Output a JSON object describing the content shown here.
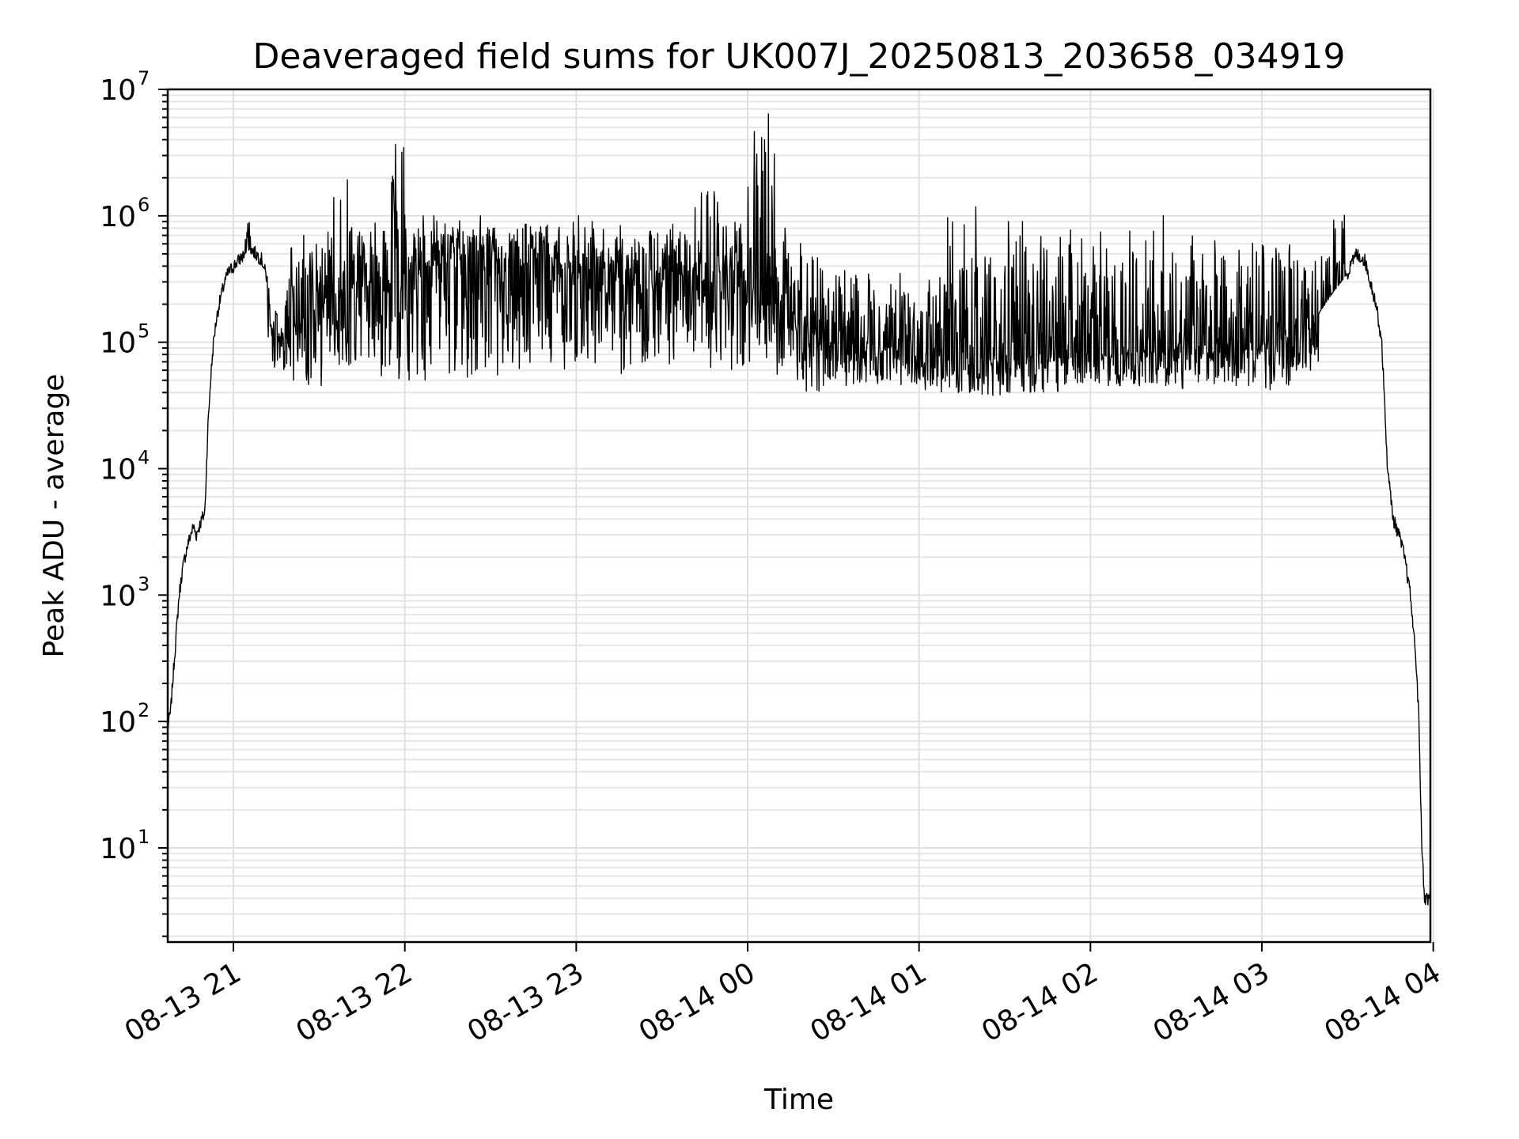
{
  "chart_data": {
    "type": "line",
    "title": "Deaveraged field sums for UK007J_20250813_203658_034919",
    "xlabel": "Time",
    "ylabel": "Peak ADU - average",
    "y_scale": "log",
    "ylim": [
      1.8,
      10000000
    ],
    "xlim": [
      "2025-08-13 20:37",
      "2025-08-14 03:59"
    ],
    "grid": true,
    "legend": "none",
    "line_color": "#000000",
    "x_ticks": [
      {
        "time": "2025-08-13 21:00",
        "label": "08-13 21"
      },
      {
        "time": "2025-08-13 22:00",
        "label": "08-13 22"
      },
      {
        "time": "2025-08-13 23:00",
        "label": "08-13 23"
      },
      {
        "time": "2025-08-14 00:00",
        "label": "08-14 00"
      },
      {
        "time": "2025-08-14 01:00",
        "label": "08-14 01"
      },
      {
        "time": "2025-08-14 02:00",
        "label": "08-14 02"
      },
      {
        "time": "2025-08-14 03:00",
        "label": "08-14 03"
      },
      {
        "time": "2025-08-14 04:00",
        "label": "08-14 04"
      }
    ],
    "y_ticks": [
      {
        "value": 10,
        "base": "10",
        "exp": "1"
      },
      {
        "value": 100,
        "base": "10",
        "exp": "2"
      },
      {
        "value": 1000,
        "base": "10",
        "exp": "3"
      },
      {
        "value": 10000,
        "base": "10",
        "exp": "4"
      },
      {
        "value": 100000,
        "base": "10",
        "exp": "5"
      },
      {
        "value": 1000000,
        "base": "10",
        "exp": "6"
      },
      {
        "value": 10000000,
        "base": "10",
        "exp": "7"
      }
    ],
    "series": [
      {
        "x": [
          "2025-08-13 20:37",
          "2025-08-13 20:38",
          "2025-08-13 20:39",
          "2025-08-13 20:40",
          "2025-08-13 20:41",
          "2025-08-13 20:42",
          "2025-08-13 20:43",
          "2025-08-13 20:44",
          "2025-08-13 20:45",
          "2025-08-13 20:46",
          "2025-08-13 20:47",
          "2025-08-13 20:48",
          "2025-08-13 20:49",
          "2025-08-13 20:50",
          "2025-08-13 20:51",
          "2025-08-13 20:52",
          "2025-08-13 20:53",
          "2025-08-13 20:54",
          "2025-08-13 20:55",
          "2025-08-13 20:56",
          "2025-08-13 20:57",
          "2025-08-13 20:58",
          "2025-08-13 21:00",
          "2025-08-13 21:02",
          "2025-08-13 21:04",
          "2025-08-13 21:06",
          "2025-08-13 21:08",
          "2025-08-13 21:10",
          "2025-08-13 21:12",
          "2025-08-13 21:14",
          "2025-08-13 21:16",
          "2025-08-13 21:18",
          "2025-08-13 21:20",
          "2025-08-13 21:25",
          "2025-08-13 21:30",
          "2025-08-13 21:35",
          "2025-08-13 21:40",
          "2025-08-13 21:45",
          "2025-08-13 21:50",
          "2025-08-13 21:55",
          "2025-08-13 22:00",
          "2025-08-13 22:10",
          "2025-08-13 22:20",
          "2025-08-13 22:30",
          "2025-08-13 22:40",
          "2025-08-13 22:50",
          "2025-08-13 23:00",
          "2025-08-13 23:10",
          "2025-08-13 23:20",
          "2025-08-13 23:30",
          "2025-08-13 23:40",
          "2025-08-13 23:50",
          "2025-08-14 00:00",
          "2025-08-14 00:10",
          "2025-08-14 00:20",
          "2025-08-14 00:30",
          "2025-08-14 00:40",
          "2025-08-14 00:50",
          "2025-08-14 01:00",
          "2025-08-14 01:10",
          "2025-08-14 01:20",
          "2025-08-14 01:30",
          "2025-08-14 01:40",
          "2025-08-14 01:50",
          "2025-08-14 02:00",
          "2025-08-14 02:10",
          "2025-08-14 02:20",
          "2025-08-14 02:30",
          "2025-08-14 02:40",
          "2025-08-14 02:50",
          "2025-08-14 03:00",
          "2025-08-14 03:10",
          "2025-08-14 03:20",
          "2025-08-14 03:25",
          "2025-08-14 03:30",
          "2025-08-14 03:33",
          "2025-08-14 03:36",
          "2025-08-14 03:38",
          "2025-08-14 03:40",
          "2025-08-14 03:42",
          "2025-08-14 03:44",
          "2025-08-14 03:46",
          "2025-08-14 03:48",
          "2025-08-14 03:50",
          "2025-08-14 03:52",
          "2025-08-14 03:54",
          "2025-08-14 03:55",
          "2025-08-14 03:56",
          "2025-08-14 03:57",
          "2025-08-14 03:58",
          "2025-08-14 03:59"
        ],
        "y": [
          90,
          120,
          250,
          500,
          1000,
          1500,
          2000,
          2500,
          3000,
          3500,
          3000,
          3500,
          4000,
          4500,
          20000,
          50000,
          100000,
          150000,
          200000,
          250000,
          300000,
          350000,
          400000,
          450000,
          500000,
          550000,
          500000,
          450000,
          300000,
          200000,
          150000,
          120000,
          100000,
          150000,
          200000,
          250000,
          250000,
          250000,
          300000,
          300000,
          350000,
          400000,
          450000,
          450000,
          400000,
          400000,
          350000,
          350000,
          300000,
          300000,
          350000,
          350000,
          300000,
          200000,
          150000,
          120000,
          100000,
          90000,
          80000,
          75000,
          70000,
          75000,
          80000,
          85000,
          80000,
          80000,
          85000,
          90000,
          85000,
          85000,
          90000,
          110000,
          170000,
          250000,
          350000,
          500000,
          450000,
          300000,
          200000,
          100000,
          10000,
          4000,
          3000,
          2000,
          1000,
          300,
          100,
          10,
          4,
          4,
          4
        ],
        "y_spread_upper": [
          0,
          0,
          0,
          0,
          0,
          0,
          0,
          0,
          0,
          0,
          0,
          0,
          0,
          0,
          0,
          0,
          0,
          0,
          0,
          0,
          0,
          0,
          0,
          0,
          1200000,
          0,
          0,
          0,
          0,
          0,
          0,
          400000,
          700000,
          700000,
          1100000,
          3300000,
          1000000,
          1000000,
          1000000,
          5500000,
          1000000,
          1000000,
          1000000,
          1000000,
          1000000,
          1000000,
          1000000,
          1000000,
          1000000,
          1000000,
          2200000,
          1000000,
          6400000,
          800000,
          600000,
          500000,
          400000,
          350000,
          400000,
          2000000,
          600000,
          900000,
          900000,
          1000000,
          1000000,
          1000000,
          1000000,
          900000,
          1000000,
          900000,
          800000,
          600000,
          600000,
          1200000,
          0,
          0,
          0,
          0,
          0,
          0,
          0,
          0,
          0,
          0,
          0,
          0,
          0,
          0,
          0,
          0,
          0
        ],
        "y_spread_lower": [
          0,
          0,
          0,
          0,
          0,
          0,
          0,
          0,
          0,
          0,
          0,
          0,
          0,
          0,
          0,
          0,
          0,
          0,
          0,
          0,
          0,
          0,
          0,
          0,
          0,
          0,
          0,
          0,
          70000,
          60000,
          60000,
          55000,
          50000,
          45000,
          45000,
          50000,
          50000,
          50000,
          50000,
          50000,
          50000,
          50000,
          50000,
          55000,
          60000,
          60000,
          55000,
          55000,
          60000,
          55000,
          60000,
          60000,
          60000,
          50000,
          40000,
          45000,
          45000,
          45000,
          40000,
          40000,
          35000,
          40000,
          40000,
          45000,
          45000,
          45000,
          45000,
          40000,
          45000,
          45000,
          40000,
          60000,
          0,
          0,
          0,
          0,
          0,
          0,
          0,
          0,
          0,
          0,
          0,
          0,
          0,
          0,
          0,
          0,
          0,
          0,
          0
        ]
      }
    ]
  }
}
